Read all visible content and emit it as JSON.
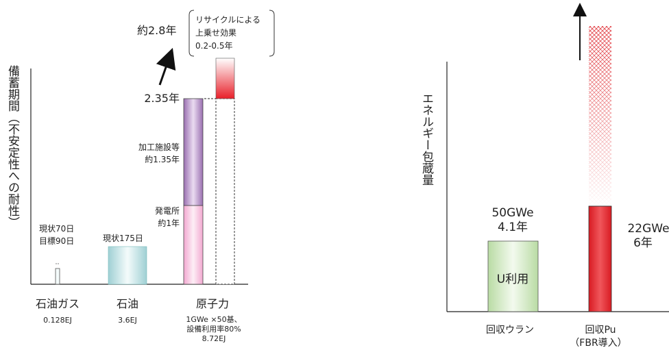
{
  "chart_data": [
    {
      "type": "bar",
      "ylabel": "備蓄期間（不安定性への耐性）",
      "categories": [
        {
          "name": "石油ガス",
          "sub": [
            "0.128EJ"
          ]
        },
        {
          "name": "石油",
          "sub": [
            "3.6EJ"
          ]
        },
        {
          "name": "原子力",
          "sub": [
            "1GWe ×50基、",
            "設備利用率80%",
            "8.72EJ"
          ]
        }
      ],
      "bars": [
        {
          "category": "石油ガス",
          "value_years": 0.19,
          "current_days": 70,
          "target_days": 90,
          "labels": [
            "現状70日",
            "目標90日"
          ],
          "color": "#cfe6ea"
        },
        {
          "category": "石油",
          "value_years": 0.48,
          "current_days": 175,
          "labels": [
            "現状175日"
          ],
          "color": "#bfe3e6"
        },
        {
          "category": "原子力",
          "stack": [
            {
              "name": "発電所",
              "value_years": 1.0,
              "labels": [
                "発電所",
                "約1年"
              ],
              "color": "#f3b7d9"
            },
            {
              "name": "加工施設等",
              "value_years": 1.35,
              "labels": [
                "加工施設等",
                "約1.35年"
              ],
              "color": "#b07fc2"
            }
          ],
          "total_label": "2.35年"
        },
        {
          "category": "原子力(リサイクル)",
          "base_years": 2.35,
          "extra_years": [
            0.2,
            0.5
          ],
          "color": "#e8202a"
        }
      ],
      "annotations": {
        "arrow_label": "約2.8年",
        "bracket_lines": [
          "リサイクルによる",
          "上乗せ効果",
          "0.2-0.5年"
        ]
      }
    },
    {
      "type": "bar",
      "ylabel": "エネルギー包蔵量",
      "categories": [
        {
          "name": "回収ウラン",
          "sub": []
        },
        {
          "name": "回収Pu",
          "sub": [
            "（FBR導入）"
          ]
        }
      ],
      "bars": [
        {
          "category": "回収ウラン",
          "value_years": 4.1,
          "capacity": "50GWe",
          "labels": [
            "50GWe",
            "4.1年"
          ],
          "inner_label": "U利用",
          "color": "#d9edc9"
        },
        {
          "category": "回収Pu",
          "value_years": 6,
          "capacity": "22GWe",
          "labels": [
            "22GWe",
            "6年"
          ],
          "color": "#e8202a",
          "extends_beyond_axis": true
        }
      ]
    }
  ]
}
